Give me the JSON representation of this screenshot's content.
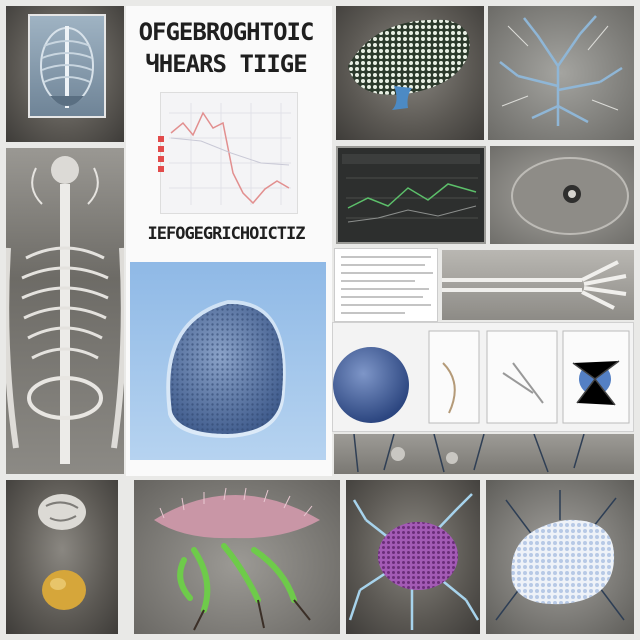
{
  "poster": {
    "title_line1": "OFGEBROGHTOIC",
    "title_line2": "ЧHEARS TIIGE",
    "subtitle": "IEFOGEGRICHOICTIZ"
  }
}
